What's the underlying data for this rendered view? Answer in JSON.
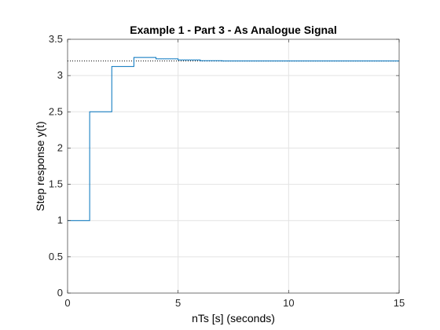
{
  "chart_data": {
    "type": "line",
    "title": "Example 1 - Part 3 - As Analogue Signal",
    "xlabel": "nTs [s] (seconds)",
    "ylabel": "Step response y(t)",
    "xlim": [
      0,
      15
    ],
    "ylim": [
      0,
      3.5
    ],
    "xticks": [
      0,
      5,
      10,
      15
    ],
    "yticks": [
      0,
      0.5,
      1,
      1.5,
      2,
      2.5,
      3,
      3.5
    ],
    "xtick_labels": [
      "0",
      "5",
      "10",
      "15"
    ],
    "ytick_labels": [
      "0",
      "0.5",
      "1",
      "1.5",
      "2",
      "2.5",
      "3",
      "3.5"
    ],
    "grid": true,
    "step_style": "stairs",
    "series": [
      {
        "color": "#0072BD",
        "x": [
          0,
          1,
          2,
          3,
          4,
          5,
          6,
          7,
          8,
          9,
          10,
          11,
          12,
          13,
          14,
          15
        ],
        "y": [
          1.0,
          2.5,
          3.125,
          3.25,
          3.23,
          3.215,
          3.205,
          3.2,
          3.2,
          3.2,
          3.2,
          3.2,
          3.2,
          3.2,
          3.2,
          3.2
        ]
      }
    ],
    "reference_line": {
      "y": 3.2,
      "color": "#000000",
      "style": "dotted"
    }
  }
}
